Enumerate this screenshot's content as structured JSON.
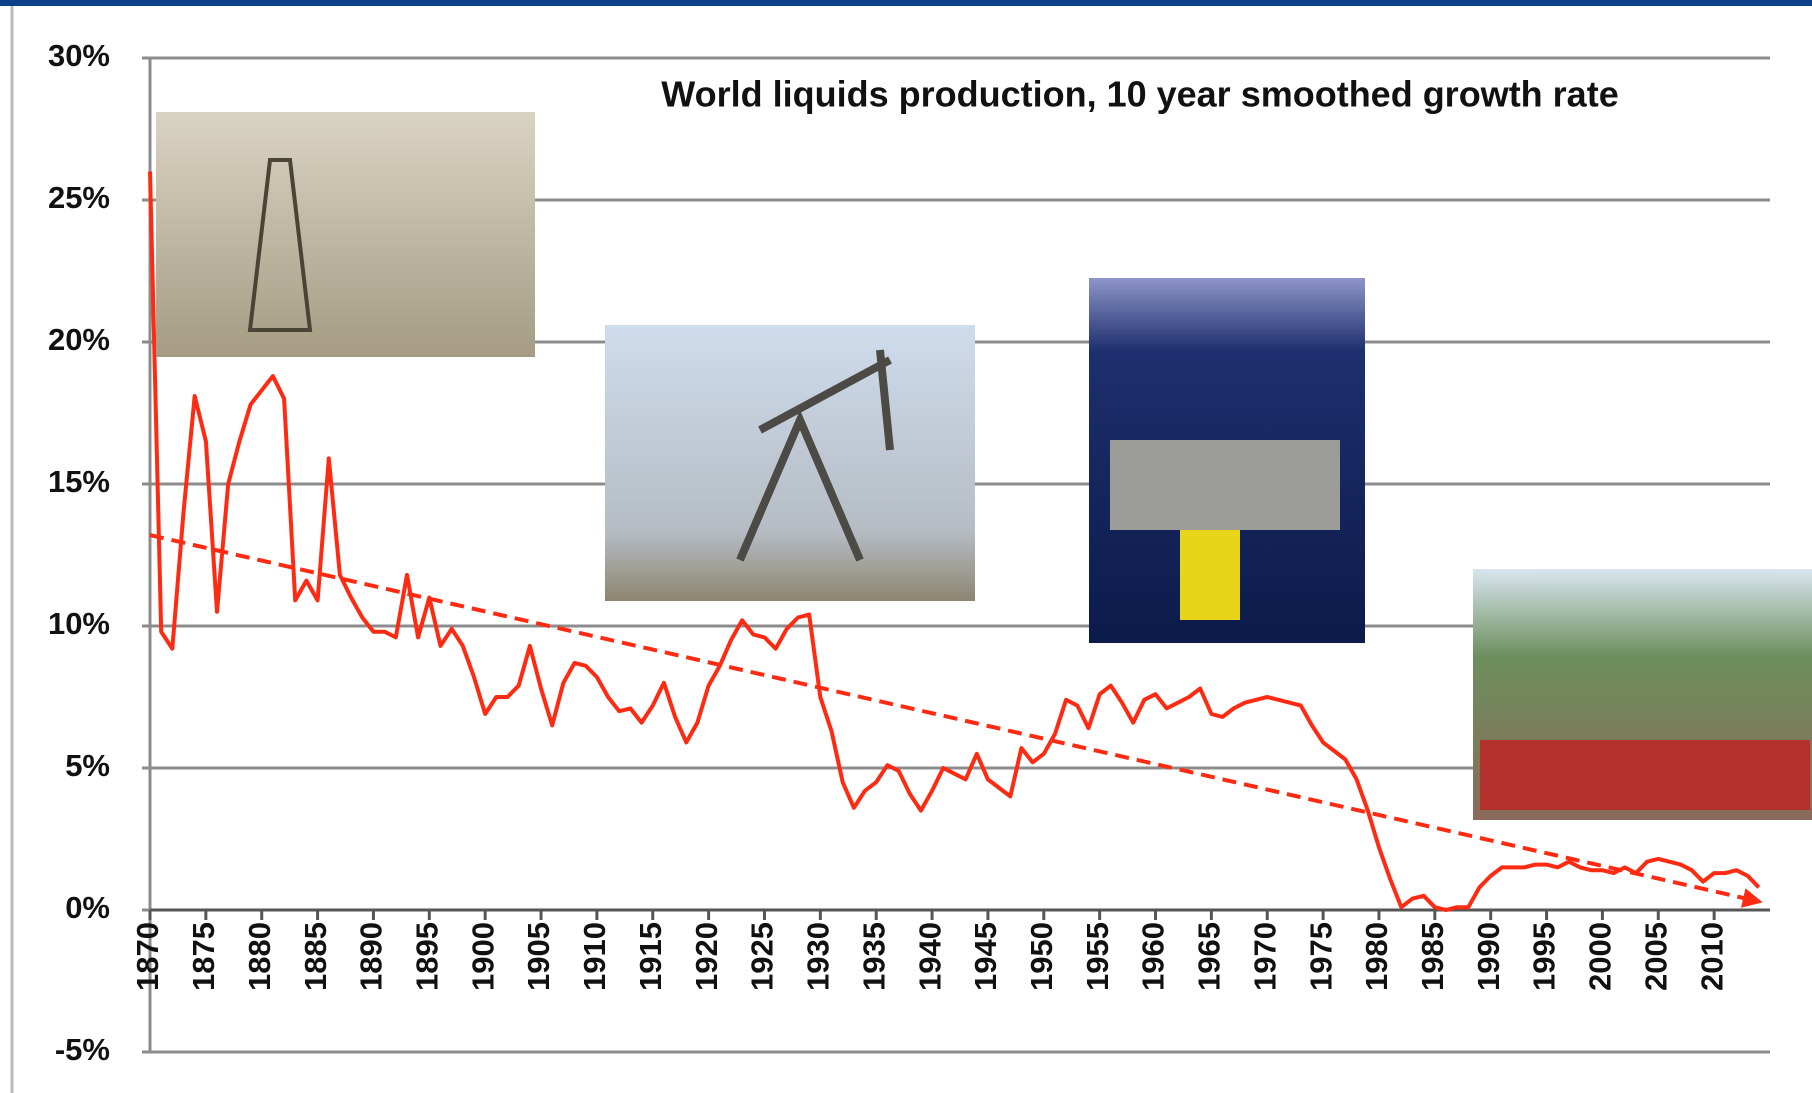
{
  "chart_data": {
    "type": "line",
    "title": "World liquids production, 10 year smoothed growth rate",
    "xlim": [
      1870,
      2015
    ],
    "xticks": [
      1870,
      1875,
      1880,
      1885,
      1890,
      1895,
      1900,
      1905,
      1910,
      1915,
      1920,
      1925,
      1930,
      1935,
      1940,
      1945,
      1950,
      1955,
      1960,
      1965,
      1970,
      1975,
      1980,
      1985,
      1990,
      1995,
      2000,
      2005,
      2010
    ],
    "ylim": [
      -5,
      30
    ],
    "yticks": [
      {
        "value": -5,
        "label": "-5%"
      },
      {
        "value": 0,
        "label": "0%"
      },
      {
        "value": 5,
        "label": "5%"
      },
      {
        "value": 10,
        "label": "10%"
      },
      {
        "value": 15,
        "label": "15%"
      },
      {
        "value": 20,
        "label": "20%"
      },
      {
        "value": 25,
        "label": "25%"
      },
      {
        "value": 30,
        "label": "30%"
      }
    ],
    "grid": true,
    "series": [
      {
        "color": "#ff2a12",
        "dashed": false,
        "x": [
          1870,
          1871,
          1872,
          1873,
          1874,
          1875,
          1876,
          1877,
          1878,
          1879,
          1880,
          1881,
          1882,
          1883,
          1884,
          1885,
          1886,
          1887,
          1888,
          1889,
          1890,
          1891,
          1892,
          1893,
          1894,
          1895,
          1896,
          1897,
          1898,
          1899,
          1900,
          1901,
          1902,
          1903,
          1904,
          1905,
          1906,
          1907,
          1908,
          1909,
          1910,
          1911,
          1912,
          1913,
          1914,
          1915,
          1916,
          1917,
          1918,
          1919,
          1920,
          1921,
          1922,
          1923,
          1924,
          1925,
          1926,
          1927,
          1928,
          1929,
          1930,
          1931,
          1932,
          1933,
          1934,
          1935,
          1936,
          1937,
          1938,
          1939,
          1940,
          1941,
          1942,
          1943,
          1944,
          1945,
          1946,
          1947,
          1948,
          1949,
          1950,
          1951,
          1952,
          1953,
          1954,
          1955,
          1956,
          1957,
          1958,
          1959,
          1960,
          1961,
          1962,
          1963,
          1964,
          1965,
          1966,
          1967,
          1968,
          1969,
          1970,
          1971,
          1972,
          1973,
          1974,
          1975,
          1976,
          1977,
          1978,
          1979,
          1980,
          1981,
          1982,
          1983,
          1984,
          1985,
          1986,
          1987,
          1988,
          1989,
          1990,
          1991,
          1992,
          1993,
          1994,
          1995,
          1996,
          1997,
          1998,
          1999,
          2000,
          2001,
          2002,
          2003,
          2004,
          2005,
          2006,
          2007,
          2008,
          2009,
          2010,
          2011,
          2012,
          2013,
          2014
        ],
        "values": [
          26,
          9.8,
          9.2,
          14,
          18.1,
          16.5,
          10.5,
          15,
          16.5,
          17.8,
          18.3,
          18.8,
          18,
          10.9,
          11.6,
          10.9,
          15.9,
          11.8,
          11,
          10.3,
          9.8,
          9.8,
          9.6,
          11.8,
          9.6,
          11,
          9.3,
          9.9,
          9.3,
          8.2,
          6.9,
          7.5,
          7.5,
          7.9,
          9.3,
          7.8,
          6.5,
          8,
          8.7,
          8.6,
          8.2,
          7.5,
          7,
          7.1,
          6.6,
          7.2,
          8,
          6.8,
          5.9,
          6.6,
          7.9,
          8.6,
          9.5,
          10.2,
          9.7,
          9.6,
          9.2,
          9.9,
          10.3,
          10.4,
          7.5,
          6.3,
          4.5,
          3.6,
          4.2,
          4.5,
          5.1,
          4.9,
          4.1,
          3.5,
          4.2,
          5,
          4.8,
          4.6,
          5.5,
          4.6,
          4.3,
          4,
          5.7,
          5.2,
          5.5,
          6.2,
          7.4,
          7.2,
          6.4,
          7.6,
          7.9,
          7.3,
          6.6,
          7.4,
          7.6,
          7.1,
          7.3,
          7.5,
          7.8,
          6.9,
          6.8,
          7.1,
          7.3,
          7.4,
          7.5,
          7.4,
          7.3,
          7.2,
          6.5,
          5.9,
          5.6,
          5.3,
          4.6,
          3.5,
          2.2,
          1.1,
          0.1,
          0.4,
          0.5,
          0.1,
          0,
          0.1,
          0.1,
          0.8,
          1.2,
          1.5,
          1.5,
          1.5,
          1.6,
          1.6,
          1.5,
          1.7,
          1.5,
          1.4,
          1.4,
          1.3,
          1.5,
          1.3,
          1.7,
          1.8,
          1.7,
          1.6,
          1.4,
          1,
          1.3,
          1.3,
          1.4,
          1.2,
          0.8
        ]
      },
      {
        "color": "#ff2a12",
        "dashed": true,
        "x": [
          1870,
          2014
        ],
        "values": [
          13.2,
          0.3
        ]
      }
    ]
  }
}
